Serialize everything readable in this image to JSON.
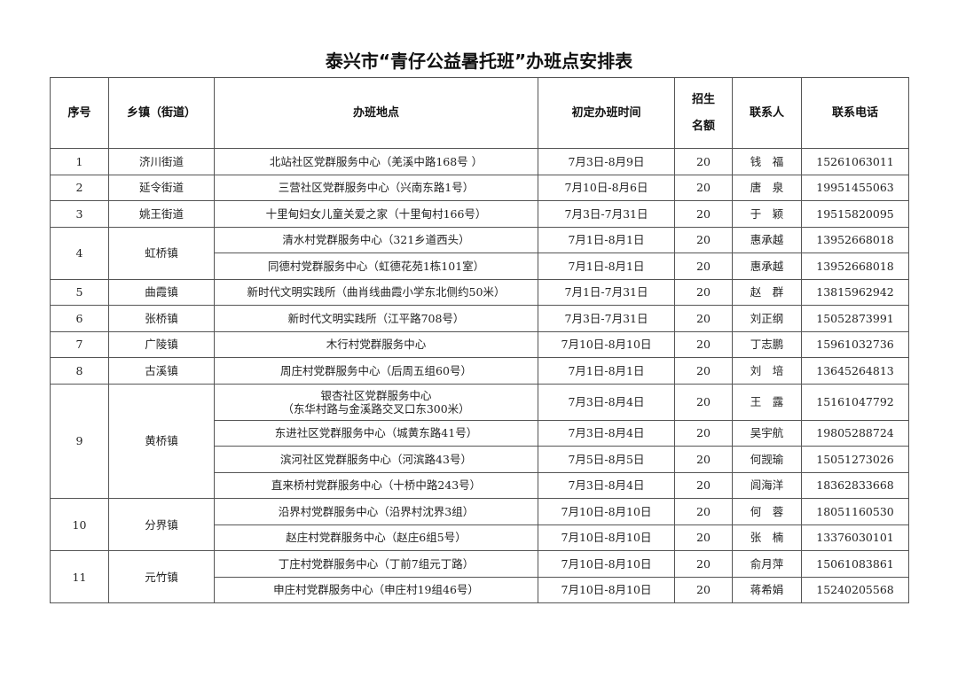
{
  "title": "泰兴市“青仔公益暑托班”办班点安排表",
  "headers": [
    "序号",
    "乡镇（街道）",
    "办班地点",
    "初定办班时间",
    [
      "招生",
      "名额"
    ],
    "联系人",
    "联系电话"
  ],
  "groups": [
    {
      "no": "1",
      "town": "济川街道",
      "sites": [
        {
          "place": "北站社区党群服务中心（羌溪中路168号 ）",
          "time": "7月3日-8月9日",
          "quota": "20",
          "contact": "钱　福",
          "phone": "15261063011"
        }
      ]
    },
    {
      "no": "2",
      "town": "延令街道",
      "sites": [
        {
          "place": "三营社区党群服务中心（兴南东路1号）",
          "time": "7月10日-8月6日",
          "quota": "20",
          "contact": "唐　泉",
          "phone": "19951455063"
        }
      ]
    },
    {
      "no": "3",
      "town": "姚王街道",
      "sites": [
        {
          "place": "十里甸妇女儿童关爱之家（十里甸村166号）",
          "time": "7月3日-7月31日",
          "quota": "20",
          "contact": "于　颖",
          "phone": "19515820095"
        }
      ]
    },
    {
      "no": "4",
      "town": "虹桥镇",
      "sites": [
        {
          "place": "清水村党群服务中心（321乡道西头）",
          "time": "7月1日-8月1日",
          "quota": "20",
          "contact": "惠承越",
          "phone": "13952668018"
        },
        {
          "place": "同德村党群服务中心（虹德花苑1栋101室）",
          "time": "7月1日-8月1日",
          "quota": "20",
          "contact": "惠承越",
          "phone": "13952668018"
        }
      ]
    },
    {
      "no": "5",
      "town": "曲霞镇",
      "sites": [
        {
          "place": "新时代文明实践所（曲肖线曲霞小学东北侧约50米）",
          "time": "7月1日-7月31日",
          "quota": "20",
          "contact": "赵　群",
          "phone": "13815962942"
        }
      ]
    },
    {
      "no": "6",
      "town": "张桥镇",
      "sites": [
        {
          "place": "新时代文明实践所（江平路708号）",
          "time": "7月3日-7月31日",
          "quota": "20",
          "contact": "刘正纲",
          "phone": "15052873991"
        }
      ]
    },
    {
      "no": "7",
      "town": "广陵镇",
      "sites": [
        {
          "place": "木行村党群服务中心",
          "time": "7月10日-8月10日",
          "quota": "20",
          "contact": "丁志鹏",
          "phone": "15961032736"
        }
      ]
    },
    {
      "no": "8",
      "town": "古溪镇",
      "sites": [
        {
          "place": "周庄村党群服务中心（后周五组60号）",
          "time": "7月1日-8月1日",
          "quota": "20",
          "contact": "刘　培",
          "phone": "13645264813"
        }
      ]
    },
    {
      "no": "9",
      "town": "黄桥镇",
      "sites": [
        {
          "place": "银杏社区党群服务中心",
          "place2": "（东华村路与金溪路交叉口东300米）",
          "time": "7月3日-8月4日",
          "quota": "20",
          "contact": "王　露",
          "phone": "15161047792"
        },
        {
          "place": "东进社区党群服务中心（城黄东路41号）",
          "time": "7月3日-8月4日",
          "quota": "20",
          "contact": "吴宇航",
          "phone": "19805288724"
        },
        {
          "place": "滨河社区党群服务中心（河滨路43号）",
          "time": "7月5日-8月5日",
          "quota": "20",
          "contact": "何觊瑜",
          "phone": "15051273026"
        },
        {
          "place": "直来桥村党群服务中心（十桥中路243号）",
          "time": "7月3日-8月4日",
          "quota": "20",
          "contact": "闾海洋",
          "phone": "18362833668"
        }
      ]
    },
    {
      "no": "10",
      "town": "分界镇",
      "sites": [
        {
          "place": "沿界村党群服务中心（沿界村沈界3组）",
          "time": "7月10日-8月10日",
          "quota": "20",
          "contact": "何　蓉",
          "phone": "18051160530"
        },
        {
          "place": "赵庄村党群服务中心（赵庄6组5号）",
          "time": "7月10日-8月10日",
          "quota": "20",
          "contact": "张　楠",
          "phone": "13376030101"
        }
      ]
    },
    {
      "no": "11",
      "town": "元竹镇",
      "sites": [
        {
          "place": "丁庄村党群服务中心（丁前7组元丁路）",
          "time": "7月10日-8月10日",
          "quota": "20",
          "contact": "俞月萍",
          "phone": "15061083861"
        },
        {
          "place": "申庄村党群服务中心（申庄村19组46号）",
          "time": "7月10日-8月10日",
          "quota": "20",
          "contact": "蒋希娟",
          "phone": "15240205568"
        }
      ]
    }
  ]
}
